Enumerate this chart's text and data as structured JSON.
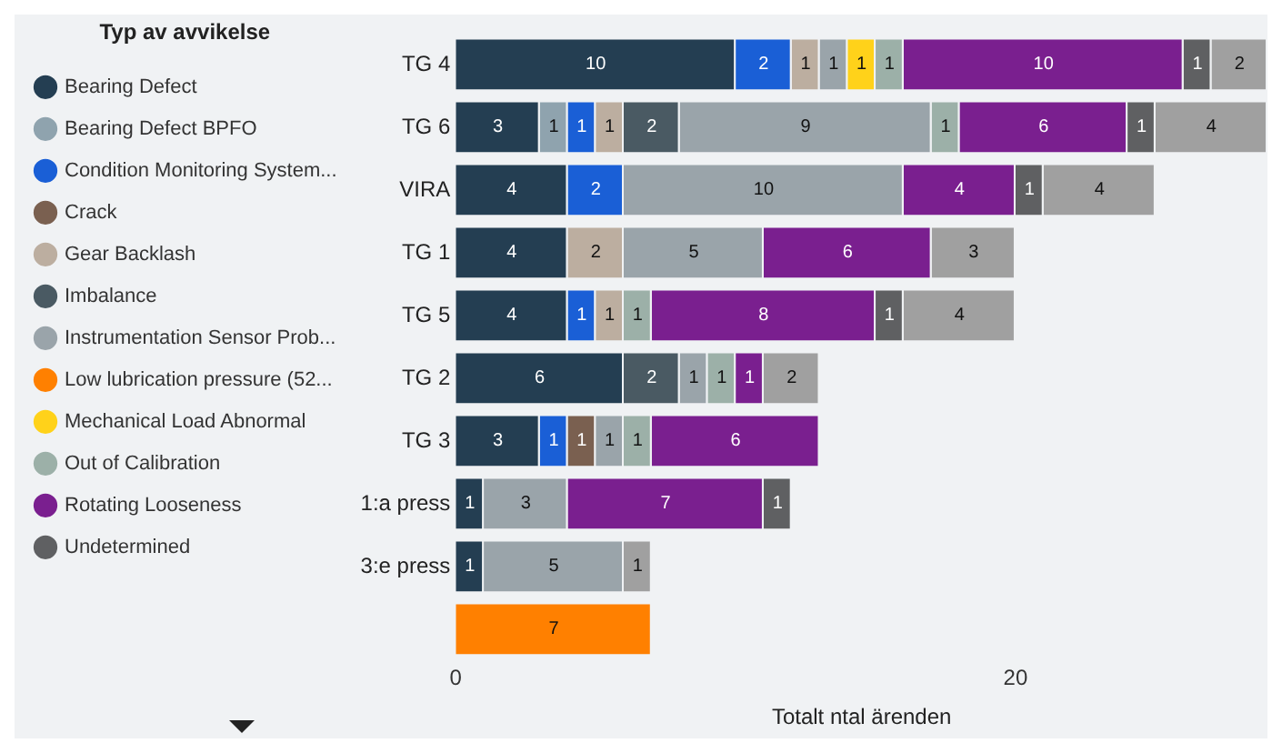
{
  "chart_data": {
    "type": "bar",
    "orientation": "horizontal",
    "stacked": true,
    "data_labels": true,
    "legend": "left",
    "legend_title": "Typ av avvikelse",
    "xlabel": "Totalt ntal ärenden",
    "xlim": [
      0,
      29
    ],
    "xticks": [
      0,
      20
    ],
    "grid": false,
    "categories": [
      "TG 4",
      "TG 6",
      "VIRA",
      "TG 1",
      "TG 5",
      "TG 2",
      "TG 3",
      "1:a press",
      "3:e press",
      null
    ],
    "series": [
      {
        "name": "Bearing Defect",
        "color": "#243e52",
        "values": [
          10,
          3,
          4,
          4,
          4,
          6,
          3,
          1,
          1,
          null
        ]
      },
      {
        "name": "Bearing Defect BPFO",
        "color": "#8fa3ae",
        "values": [
          null,
          1,
          null,
          null,
          null,
          null,
          null,
          null,
          null,
          null
        ]
      },
      {
        "name": "Condition Monitoring System...",
        "color": "#1a5fd6",
        "values": [
          2,
          1,
          2,
          null,
          1,
          null,
          1,
          null,
          null,
          null
        ]
      },
      {
        "name": "Crack",
        "color": "#7a6050",
        "values": [
          null,
          null,
          null,
          null,
          null,
          null,
          1,
          null,
          null,
          null
        ]
      },
      {
        "name": "Gear Backlash",
        "color": "#bcaea0",
        "values": [
          1,
          1,
          null,
          2,
          1,
          null,
          null,
          null,
          null,
          null
        ]
      },
      {
        "name": "Imbalance",
        "color": "#4a5a63",
        "values": [
          null,
          2,
          null,
          null,
          null,
          2,
          null,
          null,
          null,
          null
        ]
      },
      {
        "name": "Instrumentation Sensor Prob...",
        "color": "#9aa4aa",
        "values": [
          1,
          9,
          10,
          5,
          null,
          1,
          1,
          3,
          5,
          null
        ]
      },
      {
        "name": "Low lubrication pressure (52...",
        "color": "#ff8000",
        "values": [
          null,
          null,
          null,
          null,
          null,
          null,
          null,
          null,
          null,
          7
        ]
      },
      {
        "name": "Mechanical Load Abnormal",
        "color": "#ffd21a",
        "values": [
          1,
          null,
          null,
          null,
          null,
          null,
          null,
          null,
          null,
          null
        ]
      },
      {
        "name": "Out of Calibration",
        "color": "#9cb0a8",
        "values": [
          1,
          1,
          null,
          null,
          1,
          1,
          1,
          null,
          null,
          null
        ]
      },
      {
        "name": "Rotating Looseness",
        "color": "#7a1f8f",
        "values": [
          10,
          6,
          4,
          6,
          8,
          1,
          6,
          7,
          null,
          null
        ]
      },
      {
        "name": "Undetermined",
        "color": "#5f6062",
        "values": [
          1,
          1,
          1,
          null,
          1,
          null,
          null,
          1,
          null,
          null
        ]
      },
      {
        "color": "#a0a0a0",
        "values": [
          2,
          4,
          4,
          3,
          4,
          2,
          null,
          null,
          1,
          null
        ]
      }
    ]
  }
}
